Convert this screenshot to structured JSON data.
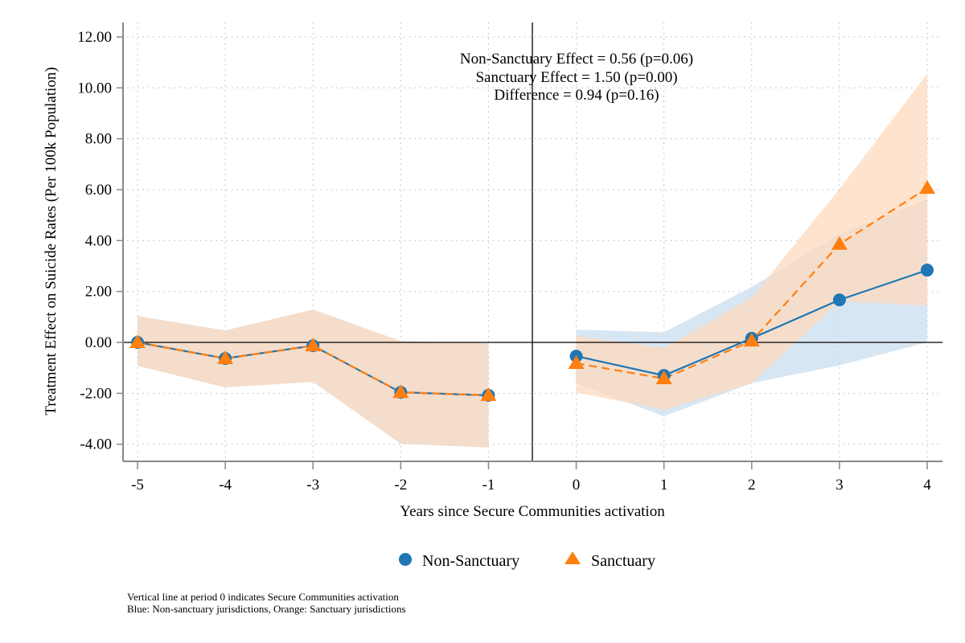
{
  "chart_data": {
    "type": "line",
    "title": "",
    "xlabel": "Years since Secure Communities activation",
    "ylabel": "Treatment Effect on Suicide Rates (Per 100k Population)",
    "x": [
      -5,
      -4,
      -3,
      -2,
      -1,
      0,
      1,
      2,
      3,
      4
    ],
    "xlim": [
      -5.15,
      4.15
    ],
    "ylim": [
      -4.7,
      12.6
    ],
    "xticks": [
      -5,
      -4,
      -3,
      -2,
      -1,
      0,
      1,
      2,
      3,
      4
    ],
    "xtick_labels": [
      "-5",
      "-4",
      "-3",
      "-2",
      "-1",
      "0",
      "1",
      "2",
      "3",
      "4"
    ],
    "yticks": [
      -4,
      -2,
      0,
      2,
      4,
      6,
      8,
      10,
      12
    ],
    "ytick_labels": [
      "-4.00",
      "-2.00",
      "0.00",
      "2.00",
      "4.00",
      "6.00",
      "8.00",
      "10.00",
      "12.00"
    ],
    "grid": true,
    "reference_lines": {
      "horizontal_y": 0,
      "vertical_x": -0.5
    },
    "series": [
      {
        "name": "Non-Sanctuary",
        "marker": "circle",
        "line_style": "solid",
        "color": "#1f77b4",
        "ci_color": "#c6dcee",
        "values": [
          0.0,
          -0.63,
          -0.13,
          -1.96,
          -2.08,
          -0.54,
          -1.3,
          0.16,
          1.67,
          2.84
        ],
        "ci_lower": [
          -0.92,
          -1.77,
          -1.55,
          -3.98,
          -4.13,
          -1.6,
          -2.9,
          -1.6,
          -0.9,
          0.0
        ],
        "ci_upper": [
          1.04,
          0.47,
          1.29,
          0.05,
          -0.03,
          0.5,
          0.4,
          2.18,
          4.26,
          5.62
        ]
      },
      {
        "name": "Sanctuary",
        "marker": "triangle",
        "line_style": "dashed",
        "color": "#ff7f0e",
        "ci_color": "#fdd9bd",
        "values": [
          0.0,
          -0.63,
          -0.13,
          -1.96,
          -2.08,
          -0.82,
          -1.42,
          0.06,
          3.86,
          6.06
        ],
        "ci_lower": [
          -0.92,
          -1.77,
          -1.55,
          -3.98,
          -4.13,
          -1.96,
          -2.65,
          -1.6,
          1.61,
          1.45
        ],
        "ci_upper": [
          1.04,
          0.47,
          1.29,
          0.05,
          -0.03,
          0.25,
          -0.22,
          1.77,
          6.03,
          10.55
        ]
      }
    ],
    "segments": [
      [
        0,
        4
      ],
      [
        5,
        9
      ]
    ],
    "annotations": [
      "Non-Sanctuary Effect = 0.56 (p=0.06)",
      "Sanctuary Effect = 1.50 (p=0.00)",
      "Difference = 0.94 (p=0.16)"
    ],
    "legend": {
      "position": "bottom",
      "entries": [
        {
          "label": "Non-Sanctuary",
          "marker": "circle",
          "color": "#1f77b4"
        },
        {
          "label": "Sanctuary",
          "marker": "triangle",
          "color": "#ff7f0e"
        }
      ]
    }
  },
  "notes": [
    "Vertical line at period 0 indicates Secure Communities activation",
    "Blue: Non-sanctuary jurisdictions, Orange: Sanctuary jurisdictions"
  ]
}
